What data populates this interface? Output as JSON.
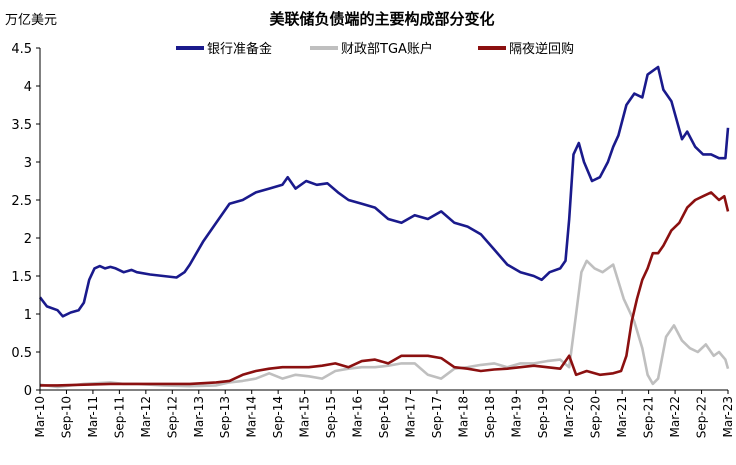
{
  "chart_data": {
    "type": "line",
    "title": "美联储负债端的主要构成部分变化",
    "ylabel": "万亿美元",
    "xlabel": "",
    "ylim": [
      0,
      4.5
    ],
    "yticks": [
      "0",
      "0.5",
      "1",
      "1.5",
      "2",
      "2.5",
      "3",
      "3.5",
      "4",
      "4.5"
    ],
    "xticks": [
      "Mar-10",
      "Sep-10",
      "Mar-11",
      "Sep-11",
      "Mar-12",
      "Sep-12",
      "Mar-13",
      "Sep-13",
      "Mar-14",
      "Sep-14",
      "Mar-15",
      "Sep-15",
      "Mar-16",
      "Sep-16",
      "Mar-17",
      "Sep-17",
      "Mar-18",
      "Sep-18",
      "Mar-19",
      "Sep-19",
      "Mar-20",
      "Sep-20",
      "Mar-21",
      "Sep-21",
      "Mar-22",
      "Sep-22",
      "Mar-23"
    ],
    "grid": false,
    "legend_position": "top",
    "colors": {
      "reserves": "#1a1a8c",
      "tga": "#bfbfbf",
      "rrp": "#8b1010"
    },
    "series": [
      {
        "name": "银行准备金",
        "color": "#1a1a8c",
        "x": [
          2010.17,
          2010.3,
          2010.5,
          2010.6,
          2010.75,
          2010.9,
          2011.0,
          2011.1,
          2011.2,
          2011.3,
          2011.4,
          2011.5,
          2011.6,
          2011.75,
          2011.9,
          2012.0,
          2012.25,
          2012.5,
          2012.75,
          2012.9,
          2013.0,
          2013.25,
          2013.5,
          2013.75,
          2014.0,
          2014.25,
          2014.5,
          2014.75,
          2014.85,
          2015.0,
          2015.2,
          2015.4,
          2015.6,
          2015.8,
          2016.0,
          2016.25,
          2016.5,
          2016.75,
          2017.0,
          2017.25,
          2017.5,
          2017.75,
          2018.0,
          2018.25,
          2018.5,
          2018.75,
          2019.0,
          2019.25,
          2019.5,
          2019.65,
          2019.8,
          2020.0,
          2020.1,
          2020.17,
          2020.25,
          2020.35,
          2020.45,
          2020.6,
          2020.75,
          2020.9,
          2021.0,
          2021.1,
          2021.25,
          2021.4,
          2021.55,
          2021.65,
          2021.75,
          2021.85,
          2021.95,
          2022.1,
          2022.2,
          2022.3,
          2022.4,
          2022.55,
          2022.7,
          2022.85,
          2023.0,
          2023.12,
          2023.17
        ],
        "values": [
          1.22,
          1.1,
          1.05,
          0.97,
          1.02,
          1.05,
          1.15,
          1.45,
          1.6,
          1.63,
          1.6,
          1.62,
          1.6,
          1.55,
          1.58,
          1.55,
          1.52,
          1.5,
          1.48,
          1.55,
          1.65,
          1.95,
          2.2,
          2.45,
          2.5,
          2.6,
          2.65,
          2.7,
          2.8,
          2.65,
          2.75,
          2.7,
          2.72,
          2.6,
          2.5,
          2.45,
          2.4,
          2.25,
          2.2,
          2.3,
          2.25,
          2.35,
          2.2,
          2.15,
          2.05,
          1.85,
          1.65,
          1.55,
          1.5,
          1.45,
          1.55,
          1.6,
          1.7,
          2.25,
          3.1,
          3.25,
          3.0,
          2.75,
          2.8,
          3.0,
          3.2,
          3.35,
          3.75,
          3.9,
          3.85,
          4.15,
          4.2,
          4.25,
          3.95,
          3.8,
          3.55,
          3.3,
          3.4,
          3.2,
          3.1,
          3.1,
          3.05,
          3.05,
          3.45
        ]
      },
      {
        "name": "财政部TGA账户",
        "color": "#bfbfbf",
        "x": [
          2010.17,
          2010.5,
          2011.0,
          2011.25,
          2011.5,
          2011.75,
          2012.0,
          2012.5,
          2013.0,
          2013.5,
          2013.75,
          2014.0,
          2014.25,
          2014.5,
          2014.75,
          2015.0,
          2015.25,
          2015.5,
          2015.75,
          2016.0,
          2016.25,
          2016.5,
          2016.75,
          2017.0,
          2017.25,
          2017.5,
          2017.75,
          2018.0,
          2018.25,
          2018.5,
          2018.75,
          2019.0,
          2019.25,
          2019.5,
          2019.75,
          2020.0,
          2020.17,
          2020.3,
          2020.4,
          2020.5,
          2020.65,
          2020.8,
          2021.0,
          2021.2,
          2021.4,
          2021.55,
          2021.65,
          2021.75,
          2021.85,
          2022.0,
          2022.15,
          2022.3,
          2022.45,
          2022.6,
          2022.75,
          2022.9,
          2023.0,
          2023.12,
          2023.17
        ],
        "values": [
          0.07,
          0.04,
          0.08,
          0.09,
          0.1,
          0.08,
          0.08,
          0.06,
          0.05,
          0.06,
          0.1,
          0.12,
          0.15,
          0.22,
          0.15,
          0.2,
          0.18,
          0.15,
          0.25,
          0.28,
          0.3,
          0.3,
          0.32,
          0.35,
          0.35,
          0.2,
          0.15,
          0.28,
          0.3,
          0.33,
          0.35,
          0.3,
          0.35,
          0.35,
          0.38,
          0.4,
          0.3,
          1.0,
          1.55,
          1.7,
          1.6,
          1.55,
          1.65,
          1.2,
          0.9,
          0.55,
          0.2,
          0.08,
          0.15,
          0.7,
          0.85,
          0.65,
          0.55,
          0.5,
          0.6,
          0.45,
          0.5,
          0.4,
          0.28
        ]
      },
      {
        "name": "隔夜逆回购",
        "color": "#8b1010",
        "x": [
          2010.17,
          2010.5,
          2011.0,
          2011.5,
          2012.0,
          2012.5,
          2013.0,
          2013.5,
          2013.75,
          2014.0,
          2014.25,
          2014.5,
          2014.75,
          2015.0,
          2015.25,
          2015.5,
          2015.75,
          2016.0,
          2016.25,
          2016.5,
          2016.75,
          2017.0,
          2017.25,
          2017.5,
          2017.75,
          2018.0,
          2018.25,
          2018.5,
          2018.75,
          2019.0,
          2019.25,
          2019.5,
          2019.75,
          2020.0,
          2020.17,
          2020.3,
          2020.5,
          2020.75,
          2021.0,
          2021.15,
          2021.25,
          2021.35,
          2021.45,
          2021.55,
          2021.65,
          2021.75,
          2021.85,
          2021.95,
          2022.1,
          2022.25,
          2022.4,
          2022.55,
          2022.7,
          2022.85,
          2023.0,
          2023.1,
          2023.17
        ],
        "values": [
          0.06,
          0.06,
          0.07,
          0.08,
          0.08,
          0.08,
          0.08,
          0.1,
          0.12,
          0.2,
          0.25,
          0.28,
          0.3,
          0.3,
          0.3,
          0.32,
          0.35,
          0.3,
          0.38,
          0.4,
          0.35,
          0.45,
          0.45,
          0.45,
          0.42,
          0.3,
          0.28,
          0.25,
          0.27,
          0.28,
          0.3,
          0.32,
          0.3,
          0.28,
          0.45,
          0.2,
          0.25,
          0.2,
          0.22,
          0.25,
          0.45,
          0.9,
          1.2,
          1.45,
          1.6,
          1.8,
          1.8,
          1.9,
          2.1,
          2.2,
          2.4,
          2.5,
          2.55,
          2.6,
          2.5,
          2.55,
          2.35
        ]
      }
    ]
  }
}
